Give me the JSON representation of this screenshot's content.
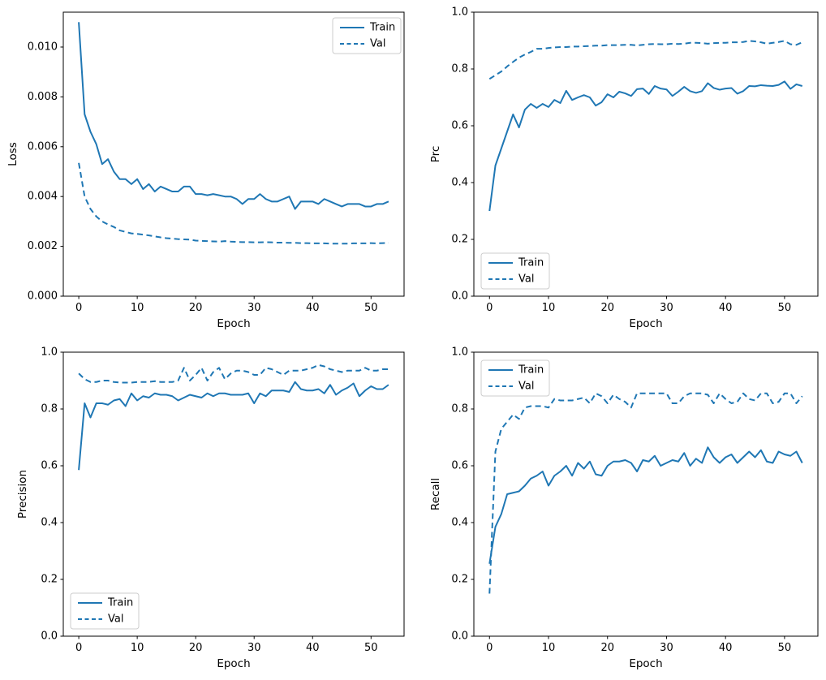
{
  "figure": {
    "background": "#ffffff",
    "line_color": "#1f77b4",
    "spine_color": "#000000",
    "text_color": "#000000",
    "legend_border_color": "#cccccc",
    "legend_fill_color": "#ffffff"
  },
  "chart_data": [
    {
      "id": "loss",
      "type": "line",
      "xlabel": "Epoch",
      "ylabel": "Loss",
      "xlim": [
        -2.65,
        55.65
      ],
      "ylim": [
        0,
        0.0114
      ],
      "grid": false,
      "x_ticks": [
        0,
        10,
        20,
        30,
        40,
        50
      ],
      "x_tick_labels": [
        "0",
        "10",
        "20",
        "30",
        "40",
        "50"
      ],
      "y_ticks": [
        0,
        0.002,
        0.004,
        0.006,
        0.008,
        0.01
      ],
      "y_tick_labels": [
        "0.000",
        "0.002",
        "0.004",
        "0.006",
        "0.008",
        "0.010"
      ],
      "legend": {
        "loc": "upper-right",
        "entries": [
          "Train",
          "Val"
        ]
      },
      "series": [
        {
          "name": "Train",
          "line": "solid",
          "values": [
            0.011,
            0.0073,
            0.0066,
            0.0061,
            0.0053,
            0.0055,
            0.005,
            0.0047,
            0.0047,
            0.0045,
            0.0047,
            0.0043,
            0.0045,
            0.0042,
            0.0044,
            0.0043,
            0.0042,
            0.0042,
            0.0044,
            0.0044,
            0.0041,
            0.0041,
            0.00405,
            0.0041,
            0.00405,
            0.004,
            0.004,
            0.0039,
            0.0037,
            0.0039,
            0.0039,
            0.0041,
            0.0039,
            0.0038,
            0.0038,
            0.0039,
            0.004,
            0.0035,
            0.0038,
            0.0038,
            0.0038,
            0.0037,
            0.0039,
            0.0038,
            0.0037,
            0.0036,
            0.0037,
            0.0037,
            0.0037,
            0.0036,
            0.0036,
            0.0037,
            0.0037,
            0.0038
          ]
        },
        {
          "name": "Val",
          "line": "dashed",
          "values": [
            0.00535,
            0.004,
            0.0035,
            0.0032,
            0.003,
            0.00288,
            0.00278,
            0.00264,
            0.00258,
            0.00252,
            0.0025,
            0.00247,
            0.00244,
            0.0024,
            0.00236,
            0.00233,
            0.00231,
            0.00229,
            0.00228,
            0.00227,
            0.00223,
            0.00222,
            0.00221,
            0.0022,
            0.00219,
            0.00221,
            0.00219,
            0.00218,
            0.00217,
            0.00217,
            0.00216,
            0.00216,
            0.00217,
            0.00216,
            0.00215,
            0.00215,
            0.00214,
            0.00214,
            0.00213,
            0.00213,
            0.00212,
            0.00212,
            0.00212,
            0.00211,
            0.00211,
            0.00211,
            0.00211,
            0.00212,
            0.00212,
            0.00212,
            0.00213,
            0.00212,
            0.00213,
            0.00214
          ]
        }
      ]
    },
    {
      "id": "prc",
      "type": "line",
      "xlabel": "Epoch",
      "ylabel": "Prc",
      "xlim": [
        -2.65,
        55.65
      ],
      "ylim": [
        0,
        1.0
      ],
      "grid": false,
      "x_ticks": [
        0,
        10,
        20,
        30,
        40,
        50
      ],
      "x_tick_labels": [
        "0",
        "10",
        "20",
        "30",
        "40",
        "50"
      ],
      "y_ticks": [
        0,
        0.2,
        0.4,
        0.6,
        0.8,
        1.0
      ],
      "y_tick_labels": [
        "0.0",
        "0.2",
        "0.4",
        "0.6",
        "0.8",
        "1.0"
      ],
      "legend": {
        "loc": "lower-left",
        "entries": [
          "Train",
          "Val"
        ]
      },
      "series": [
        {
          "name": "Train",
          "line": "solid",
          "values": [
            0.3,
            0.46,
            0.52,
            0.58,
            0.64,
            0.594,
            0.657,
            0.677,
            0.663,
            0.677,
            0.666,
            0.691,
            0.68,
            0.723,
            0.691,
            0.7,
            0.708,
            0.7,
            0.671,
            0.683,
            0.711,
            0.7,
            0.72,
            0.714,
            0.705,
            0.729,
            0.731,
            0.712,
            0.74,
            0.731,
            0.728,
            0.705,
            0.72,
            0.737,
            0.722,
            0.716,
            0.722,
            0.75,
            0.733,
            0.727,
            0.731,
            0.733,
            0.713,
            0.722,
            0.74,
            0.739,
            0.743,
            0.741,
            0.74,
            0.744,
            0.756,
            0.73,
            0.746,
            0.74
          ]
        },
        {
          "name": "Val",
          "line": "dashed",
          "values": [
            0.765,
            0.778,
            0.791,
            0.809,
            0.825,
            0.84,
            0.851,
            0.86,
            0.871,
            0.871,
            0.874,
            0.876,
            0.877,
            0.877,
            0.879,
            0.879,
            0.88,
            0.881,
            0.882,
            0.882,
            0.884,
            0.884,
            0.884,
            0.885,
            0.885,
            0.883,
            0.885,
            0.887,
            0.888,
            0.887,
            0.887,
            0.889,
            0.888,
            0.889,
            0.892,
            0.892,
            0.891,
            0.889,
            0.891,
            0.892,
            0.892,
            0.894,
            0.894,
            0.895,
            0.899,
            0.897,
            0.894,
            0.889,
            0.892,
            0.895,
            0.899,
            0.887,
            0.885,
            0.894
          ]
        }
      ]
    },
    {
      "id": "precision",
      "type": "line",
      "xlabel": "Epoch",
      "ylabel": "Precision",
      "xlim": [
        -2.65,
        55.65
      ],
      "ylim": [
        0,
        1.0
      ],
      "grid": false,
      "x_ticks": [
        0,
        10,
        20,
        30,
        40,
        50
      ],
      "x_tick_labels": [
        "0",
        "10",
        "20",
        "30",
        "40",
        "50"
      ],
      "y_ticks": [
        0,
        0.2,
        0.4,
        0.6,
        0.8,
        1.0
      ],
      "y_tick_labels": [
        "0.0",
        "0.2",
        "0.4",
        "0.6",
        "0.8",
        "1.0"
      ],
      "legend": {
        "loc": "lower-left",
        "entries": [
          "Train",
          "Val"
        ]
      },
      "series": [
        {
          "name": "Train",
          "line": "solid",
          "values": [
            0.585,
            0.82,
            0.77,
            0.82,
            0.82,
            0.815,
            0.83,
            0.835,
            0.81,
            0.855,
            0.83,
            0.845,
            0.84,
            0.855,
            0.85,
            0.85,
            0.845,
            0.83,
            0.84,
            0.85,
            0.845,
            0.84,
            0.855,
            0.845,
            0.855,
            0.855,
            0.85,
            0.85,
            0.85,
            0.855,
            0.82,
            0.855,
            0.845,
            0.865,
            0.865,
            0.865,
            0.86,
            0.895,
            0.87,
            0.865,
            0.865,
            0.87,
            0.855,
            0.885,
            0.85,
            0.865,
            0.875,
            0.89,
            0.845,
            0.865,
            0.88,
            0.87,
            0.87,
            0.885
          ]
        },
        {
          "name": "Val",
          "line": "dashed",
          "values": [
            0.925,
            0.905,
            0.895,
            0.895,
            0.9,
            0.9,
            0.895,
            0.893,
            0.893,
            0.893,
            0.895,
            0.895,
            0.895,
            0.898,
            0.895,
            0.895,
            0.895,
            0.9,
            0.945,
            0.9,
            0.92,
            0.945,
            0.9,
            0.93,
            0.945,
            0.905,
            0.925,
            0.935,
            0.935,
            0.93,
            0.92,
            0.92,
            0.945,
            0.94,
            0.93,
            0.92,
            0.935,
            0.935,
            0.935,
            0.94,
            0.945,
            0.955,
            0.95,
            0.94,
            0.935,
            0.93,
            0.935,
            0.935,
            0.935,
            0.945,
            0.935,
            0.935,
            0.94,
            0.94
          ]
        }
      ]
    },
    {
      "id": "recall",
      "type": "line",
      "xlabel": "Epoch",
      "ylabel": "Recall",
      "xlim": [
        -2.65,
        55.65
      ],
      "ylim": [
        0,
        1.0
      ],
      "grid": false,
      "x_ticks": [
        0,
        10,
        20,
        30,
        40,
        50
      ],
      "x_tick_labels": [
        "0",
        "10",
        "20",
        "30",
        "40",
        "50"
      ],
      "y_ticks": [
        0,
        0.2,
        0.4,
        0.6,
        0.8,
        1.0
      ],
      "y_tick_labels": [
        "0.0",
        "0.2",
        "0.4",
        "0.6",
        "0.8",
        "1.0"
      ],
      "legend": {
        "loc": "upper-left",
        "entries": [
          "Train",
          "Val"
        ]
      },
      "series": [
        {
          "name": "Train",
          "line": "solid",
          "values": [
            0.255,
            0.385,
            0.43,
            0.5,
            0.505,
            0.51,
            0.53,
            0.555,
            0.565,
            0.58,
            0.53,
            0.565,
            0.58,
            0.6,
            0.565,
            0.61,
            0.59,
            0.615,
            0.57,
            0.565,
            0.6,
            0.615,
            0.615,
            0.62,
            0.61,
            0.58,
            0.62,
            0.615,
            0.635,
            0.6,
            0.61,
            0.62,
            0.615,
            0.645,
            0.6,
            0.625,
            0.61,
            0.665,
            0.63,
            0.61,
            0.63,
            0.64,
            0.61,
            0.63,
            0.65,
            0.63,
            0.655,
            0.615,
            0.61,
            0.65,
            0.64,
            0.635,
            0.65,
            0.61
          ]
        },
        {
          "name": "Val",
          "line": "dashed",
          "values": [
            0.15,
            0.65,
            0.73,
            0.755,
            0.78,
            0.765,
            0.805,
            0.81,
            0.81,
            0.81,
            0.805,
            0.835,
            0.83,
            0.83,
            0.83,
            0.835,
            0.84,
            0.82,
            0.855,
            0.845,
            0.82,
            0.85,
            0.835,
            0.825,
            0.805,
            0.855,
            0.855,
            0.855,
            0.855,
            0.855,
            0.855,
            0.82,
            0.82,
            0.845,
            0.855,
            0.855,
            0.855,
            0.85,
            0.82,
            0.855,
            0.835,
            0.82,
            0.825,
            0.855,
            0.835,
            0.83,
            0.855,
            0.855,
            0.82,
            0.825,
            0.855,
            0.855,
            0.82,
            0.845
          ]
        }
      ]
    }
  ]
}
